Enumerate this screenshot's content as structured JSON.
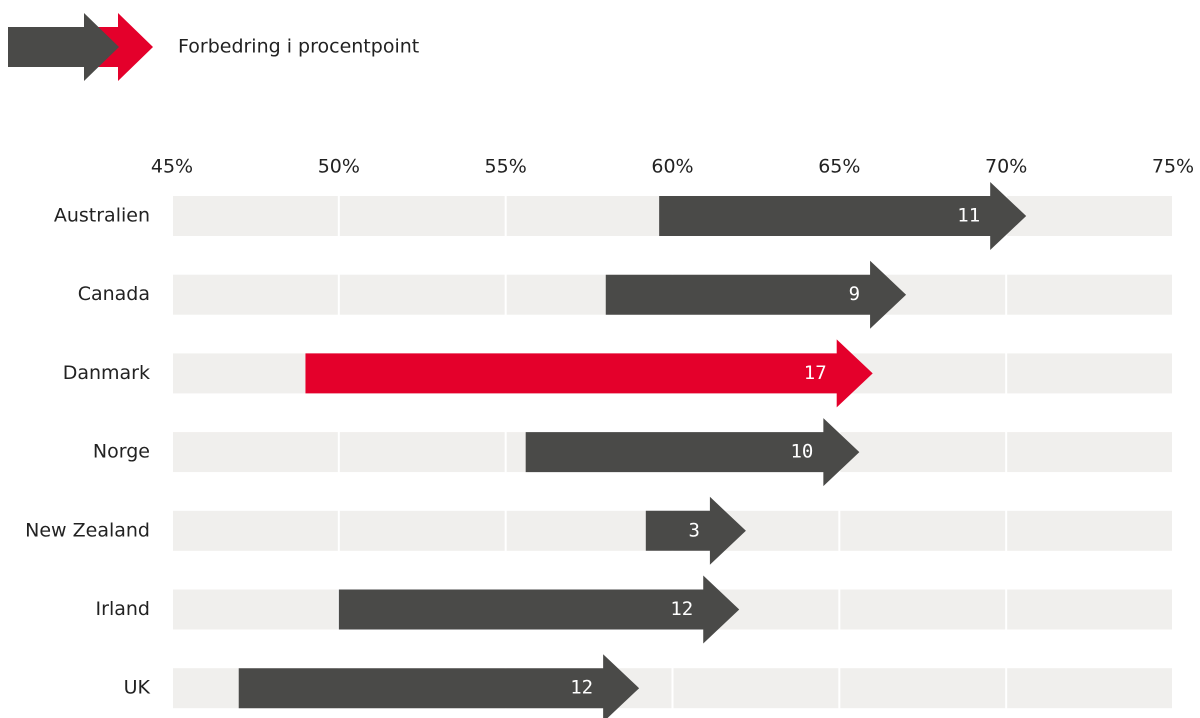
{
  "chart_data": {
    "type": "arrow-range",
    "categories": [
      "Australien",
      "Canada",
      "Danmark",
      "Norge",
      "New Zealand",
      "Irland",
      "UK"
    ],
    "series": [
      {
        "name": "Forbedring i procentpoint",
        "start": [
          59.6,
          58,
          49,
          55.6,
          59.2,
          50,
          47
        ],
        "values": [
          11,
          9,
          17,
          10,
          3,
          12,
          12
        ],
        "colors": [
          "#4a4a48",
          "#4a4a48",
          "#e4002b",
          "#4a4a48",
          "#4a4a48",
          "#4a4a48",
          "#4a4a48"
        ]
      }
    ],
    "xlim": [
      45,
      75
    ],
    "xticks": [
      {
        "value": 45,
        "label": "45%"
      },
      {
        "value": 50,
        "label": "50%"
      },
      {
        "value": 55,
        "label": "55%"
      },
      {
        "value": 60,
        "label": "60%"
      },
      {
        "value": 65,
        "label": "65%"
      },
      {
        "value": 70,
        "label": "70%"
      },
      {
        "value": 75,
        "label": "75%"
      }
    ],
    "grid": true,
    "band_color": "#f0efed"
  }
}
